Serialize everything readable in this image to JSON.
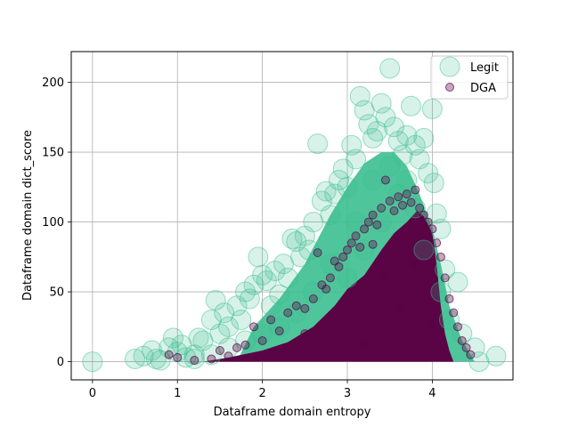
{
  "chart_data": {
    "type": "scatter",
    "title": "",
    "xlabel": "Dataframe domain entropy",
    "ylabel": "Dataframe domain dict_score",
    "xlim": [
      -0.25,
      4.95
    ],
    "ylim": [
      -13,
      222
    ],
    "xticks": [
      0,
      1,
      2,
      3,
      4
    ],
    "yticks": [
      0,
      50,
      100,
      150,
      200
    ],
    "grid": true,
    "legend_position": "top-right",
    "series": [
      {
        "name": "Legit",
        "color": "#3cbf90",
        "alpha": 0.2,
        "marker_size": "large",
        "points": [
          [
            0,
            0
          ],
          [
            0.5,
            2
          ],
          [
            0.6,
            4
          ],
          [
            0.7,
            8
          ],
          [
            0.75,
            2
          ],
          [
            0.8,
            1
          ],
          [
            0.9,
            10
          ],
          [
            0.95,
            17
          ],
          [
            1.0,
            7
          ],
          [
            1.05,
            12
          ],
          [
            1.1,
            3
          ],
          [
            1.2,
            5
          ],
          [
            1.25,
            17
          ],
          [
            1.3,
            15
          ],
          [
            1.4,
            30
          ],
          [
            1.45,
            44
          ],
          [
            1.5,
            20
          ],
          [
            1.55,
            35
          ],
          [
            1.6,
            25
          ],
          [
            1.7,
            40
          ],
          [
            1.75,
            30
          ],
          [
            1.8,
            50
          ],
          [
            1.85,
            45
          ],
          [
            1.9,
            55
          ],
          [
            1.95,
            75
          ],
          [
            2.0,
            62
          ],
          [
            2.05,
            58
          ],
          [
            2.1,
            40
          ],
          [
            2.15,
            65
          ],
          [
            2.2,
            48
          ],
          [
            2.25,
            70
          ],
          [
            2.3,
            60
          ],
          [
            2.35,
            88
          ],
          [
            2.4,
            86
          ],
          [
            2.45,
            75
          ],
          [
            2.5,
            90
          ],
          [
            2.55,
            80
          ],
          [
            2.6,
            100
          ],
          [
            2.65,
            156
          ],
          [
            2.7,
            115
          ],
          [
            2.75,
            122
          ],
          [
            2.8,
            105
          ],
          [
            2.85,
            120
          ],
          [
            2.9,
            130
          ],
          [
            2.95,
            138
          ],
          [
            3.0,
            125
          ],
          [
            3.05,
            155
          ],
          [
            3.1,
            145
          ],
          [
            3.15,
            190
          ],
          [
            3.2,
            180
          ],
          [
            3.25,
            170
          ],
          [
            3.3,
            160
          ],
          [
            3.35,
            165
          ],
          [
            3.4,
            185
          ],
          [
            3.45,
            175
          ],
          [
            3.5,
            210
          ],
          [
            3.55,
            168
          ],
          [
            3.6,
            158
          ],
          [
            3.65,
            148
          ],
          [
            3.7,
            162
          ],
          [
            3.75,
            183
          ],
          [
            3.8,
            155
          ],
          [
            3.85,
            145
          ],
          [
            3.9,
            160
          ],
          [
            3.95,
            135
          ],
          [
            4.0,
            181
          ],
          [
            4.02,
            128
          ],
          [
            4.05,
            106
          ],
          [
            4.1,
            95
          ],
          [
            4.15,
            66
          ],
          [
            4.2,
            30
          ],
          [
            4.3,
            57
          ],
          [
            4.35,
            20
          ],
          [
            4.5,
            10
          ],
          [
            4.55,
            0
          ],
          [
            4.75,
            4
          ],
          [
            3.0,
            60
          ],
          [
            3.2,
            80
          ],
          [
            3.4,
            100
          ],
          [
            3.6,
            120
          ],
          [
            3.8,
            110
          ],
          [
            3.3,
            130
          ],
          [
            3.5,
            140
          ],
          [
            3.7,
            130
          ],
          [
            2.8,
            70
          ],
          [
            2.6,
            50
          ],
          [
            2.4,
            35
          ],
          [
            2.2,
            25
          ],
          [
            2.0,
            20
          ],
          [
            1.8,
            15
          ],
          [
            1.6,
            10
          ],
          [
            1.4,
            5
          ],
          [
            1.2,
            2
          ],
          [
            3.1,
            100
          ],
          [
            3.9,
            80
          ],
          [
            4.1,
            50
          ]
        ]
      },
      {
        "name": "DGA",
        "color": "#5a0445",
        "alpha": 0.35,
        "marker_size": "small",
        "points": [
          [
            0.9,
            5
          ],
          [
            1.0,
            3
          ],
          [
            1.2,
            1
          ],
          [
            1.4,
            2
          ],
          [
            1.5,
            8
          ],
          [
            1.6,
            4
          ],
          [
            1.7,
            10
          ],
          [
            1.8,
            12
          ],
          [
            1.9,
            25
          ],
          [
            2.0,
            15
          ],
          [
            2.1,
            30
          ],
          [
            2.2,
            22
          ],
          [
            2.3,
            35
          ],
          [
            2.4,
            40
          ],
          [
            2.5,
            38
          ],
          [
            2.6,
            45
          ],
          [
            2.7,
            55
          ],
          [
            2.75,
            52
          ],
          [
            2.8,
            60
          ],
          [
            2.85,
            72
          ],
          [
            2.9,
            68
          ],
          [
            2.95,
            75
          ],
          [
            3.0,
            80
          ],
          [
            3.05,
            85
          ],
          [
            3.1,
            90
          ],
          [
            3.15,
            82
          ],
          [
            3.2,
            95
          ],
          [
            3.25,
            100
          ],
          [
            3.3,
            105
          ],
          [
            3.35,
            98
          ],
          [
            3.4,
            110
          ],
          [
            3.45,
            130
          ],
          [
            3.5,
            115
          ],
          [
            3.55,
            108
          ],
          [
            3.6,
            118
          ],
          [
            3.65,
            112
          ],
          [
            3.7,
            120
          ],
          [
            3.75,
            114
          ],
          [
            3.8,
            123
          ],
          [
            3.85,
            110
          ],
          [
            3.9,
            105
          ],
          [
            3.95,
            100
          ],
          [
            4.0,
            95
          ],
          [
            4.05,
            85
          ],
          [
            4.1,
            75
          ],
          [
            4.15,
            60
          ],
          [
            4.2,
            45
          ],
          [
            4.25,
            35
          ],
          [
            4.3,
            25
          ],
          [
            4.35,
            15
          ],
          [
            4.4,
            10
          ],
          [
            4.45,
            5
          ],
          [
            2.65,
            78
          ],
          [
            3.3,
            84
          ],
          [
            3.45,
            60
          ],
          [
            4.0,
            27
          ],
          [
            3.2,
            12
          ],
          [
            3.6,
            40
          ],
          [
            2.5,
            20
          ],
          [
            3.8,
            70
          ]
        ]
      }
    ]
  }
}
